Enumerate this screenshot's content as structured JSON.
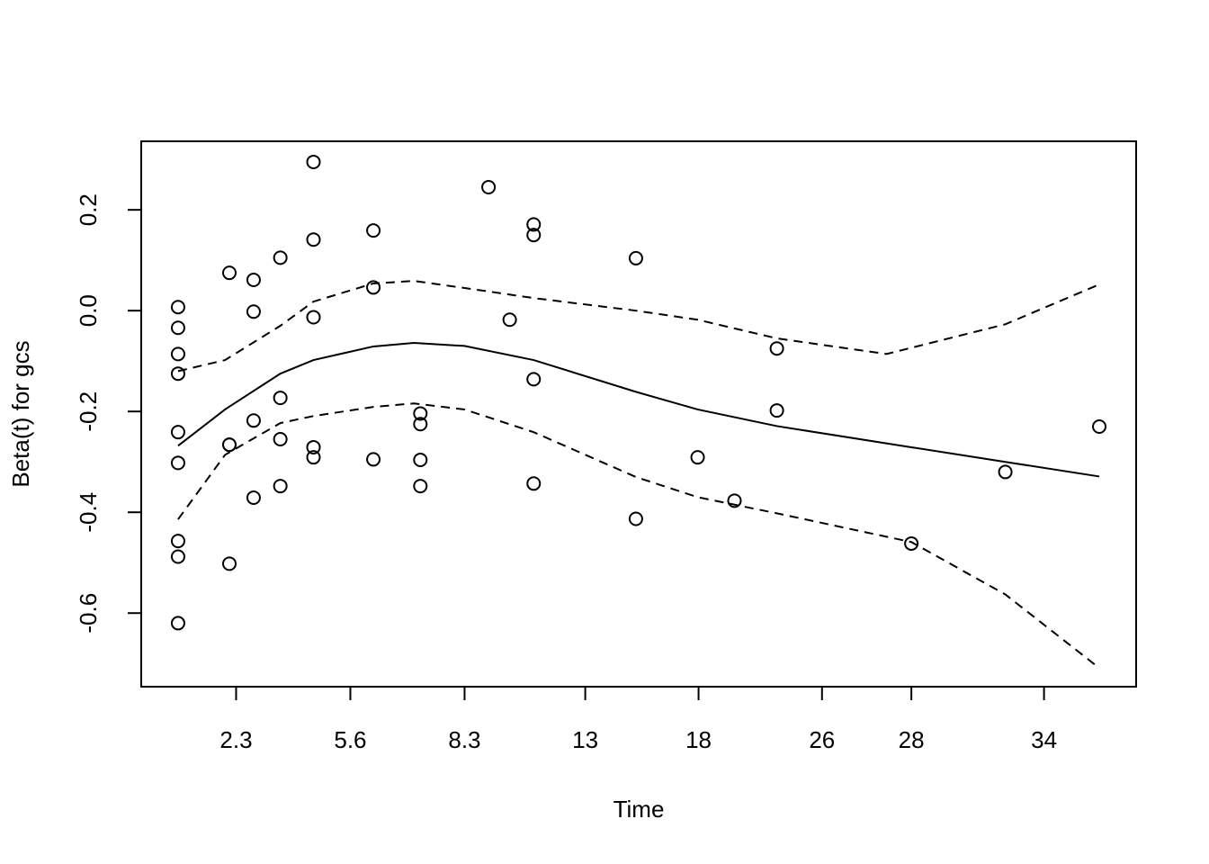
{
  "chart_data": {
    "type": "scatter",
    "xlabel": "Time",
    "ylabel": "Beta(t) for gcs",
    "xlim": [
      -0.04,
      1.04
    ],
    "ylim": [
      -0.746,
      0.336
    ],
    "xticks": [
      {
        "value": 0.063,
        "label": "2.3"
      },
      {
        "value": 0.187,
        "label": "5.6"
      },
      {
        "value": 0.311,
        "label": "8.3"
      },
      {
        "value": 0.442,
        "label": "13"
      },
      {
        "value": 0.565,
        "label": "18"
      },
      {
        "value": 0.699,
        "label": "26"
      },
      {
        "value": 0.796,
        "label": "28"
      },
      {
        "value": 0.94,
        "label": "34"
      }
    ],
    "yticks": [
      -0.6,
      -0.4,
      -0.2,
      {
        "value": 0,
        "label": "0.0"
      },
      0.2
    ],
    "color": "#000000",
    "points": {
      "x": [
        0,
        0,
        0,
        0,
        0,
        0,
        0,
        0,
        0,
        0.0557,
        0.0557,
        0.0557,
        0.0557,
        0.082,
        0.082,
        0.082,
        0.082,
        0.111,
        0.111,
        0.111,
        0.111,
        0.147,
        0.147,
        0.147,
        0.147,
        0.147,
        0.212,
        0.212,
        0.212,
        0.263,
        0.263,
        0.263,
        0.263,
        0.337,
        0.36,
        0.386,
        0.386,
        0.386,
        0.386,
        0.497,
        0.497,
        0.564,
        0.604,
        0.65,
        0.65,
        0.796,
        0.898,
        1
      ],
      "y": [
        0.007,
        -0.034,
        -0.086,
        -0.125,
        -0.241,
        -0.302,
        -0.457,
        -0.488,
        -0.62,
        0.075,
        -0.266,
        -0.266,
        -0.502,
        0.061,
        -0.002,
        -0.218,
        -0.371,
        0.105,
        -0.173,
        -0.255,
        -0.348,
        0.295,
        0.141,
        -0.013,
        -0.271,
        -0.291,
        0.159,
        0.046,
        -0.295,
        -0.204,
        -0.225,
        -0.296,
        -0.348,
        0.245,
        -0.018,
        0.171,
        0.15,
        -0.136,
        -0.343,
        0.104,
        -0.413,
        -0.291,
        -0.377,
        -0.075,
        -0.198,
        -0.462,
        -0.32,
        -0.23
      ]
    },
    "series": [
      {
        "style": "solid",
        "x": [
          0,
          0.051,
          0.111,
          0.147,
          0.212,
          0.256,
          0.311,
          0.386,
          0.497,
          0.564,
          0.65,
          0.796,
          0.898,
          1
        ],
        "values": [
          -0.268,
          -0.196,
          -0.125,
          -0.098,
          -0.071,
          -0.064,
          -0.07,
          -0.098,
          -0.161,
          -0.196,
          -0.229,
          -0.271,
          -0.3,
          -0.329
        ]
      },
      {
        "style": "dashed",
        "x": [
          0,
          0.051,
          0.111,
          0.147,
          0.212,
          0.256,
          0.311,
          0.386,
          0.497,
          0.564,
          0.65,
          0.769,
          0.898,
          1
        ],
        "values": [
          -0.12,
          -0.098,
          -0.03,
          0.018,
          0.054,
          0.059,
          0.045,
          0.025,
          0,
          -0.018,
          -0.055,
          -0.086,
          -0.027,
          0.052
        ]
      },
      {
        "style": "dashed",
        "x": [
          0,
          0.051,
          0.111,
          0.147,
          0.212,
          0.256,
          0.311,
          0.386,
          0.497,
          0.564,
          0.65,
          0.796,
          0.898,
          1
        ],
        "values": [
          -0.414,
          -0.286,
          -0.223,
          -0.209,
          -0.191,
          -0.184,
          -0.196,
          -0.241,
          -0.33,
          -0.37,
          -0.402,
          -0.459,
          -0.563,
          -0.709
        ]
      }
    ]
  }
}
